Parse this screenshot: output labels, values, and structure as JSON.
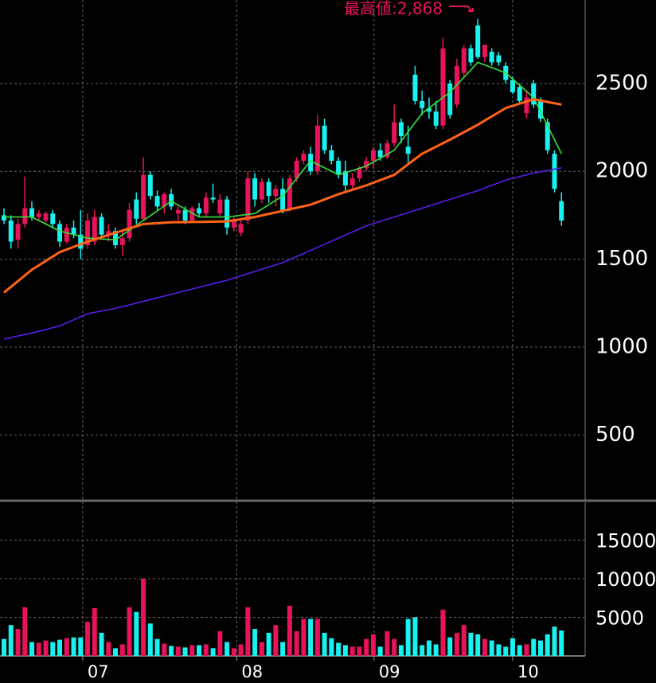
{
  "chart_data": {
    "type": "candlestick",
    "annotation": "最高値:2,868",
    "xlim": [
      -0.57,
      83.4
    ],
    "xticks": [
      {
        "value": 11.3,
        "label": "07"
      },
      {
        "value": 33.4,
        "label": "08"
      },
      {
        "value": 53.1,
        "label": "09"
      },
      {
        "value": 73,
        "label": "10"
      }
    ],
    "ylim": [
      130,
      2975
    ],
    "yticks": [
      500,
      1000,
      1500,
      2000,
      2500
    ],
    "up_color": "#e8135a",
    "down_color": "#19f0f0",
    "candles": {
      "open": [
        1750,
        1720,
        1610,
        1700,
        1790,
        1740,
        1720,
        1760,
        1700,
        1600,
        1680,
        1640,
        1580,
        1600,
        1740,
        1640,
        1660,
        1580,
        1620,
        1840,
        1730,
        1980,
        1860,
        1800,
        1870,
        1760,
        1780,
        1720,
        1790,
        1760,
        1850,
        1760,
        1840,
        1680,
        1650,
        1720,
        1960,
        1840,
        1940,
        1860,
        1900,
        1780,
        1960,
        2060,
        2100,
        2000,
        2260,
        2120,
        2060,
        2000,
        1920,
        1960,
        2020,
        2060,
        2120,
        2080,
        2160,
        2280,
        2140,
        2550,
        2400,
        2360,
        2340,
        2260,
        2500,
        2380,
        2560,
        2700,
        2830,
        2650,
        2680,
        2660,
        2600,
        2520,
        2480,
        2330,
        2500,
        2400,
        2280,
        2100,
        1830
      ],
      "high": [
        1790,
        1750,
        1730,
        1970,
        1830,
        1780,
        1770,
        1780,
        1720,
        1700,
        1720,
        1780,
        1760,
        1780,
        1760,
        1700,
        1680,
        1660,
        1820,
        1880,
        2080,
        2000,
        1890,
        1880,
        1900,
        1800,
        1800,
        1800,
        1820,
        1880,
        1930,
        1870,
        1860,
        1740,
        1720,
        2000,
        1990,
        1960,
        1960,
        1920,
        1960,
        1980,
        2080,
        2120,
        2140,
        2320,
        2300,
        2150,
        2080,
        2060,
        1990,
        2030,
        2080,
        2140,
        2160,
        2180,
        2380,
        2300,
        2260,
        2600,
        2460,
        2420,
        2400,
        2760,
        2520,
        2640,
        2720,
        2720,
        2868,
        2720,
        2700,
        2680,
        2620,
        2540,
        2500,
        2460,
        2520,
        2420,
        2300,
        2120,
        1880
      ],
      "low": [
        1700,
        1560,
        1560,
        1680,
        1720,
        1720,
        1700,
        1680,
        1570,
        1590,
        1620,
        1500,
        1560,
        1580,
        1620,
        1600,
        1560,
        1520,
        1600,
        1700,
        1720,
        1840,
        1780,
        1760,
        1780,
        1720,
        1700,
        1710,
        1740,
        1740,
        1820,
        1740,
        1640,
        1660,
        1630,
        1700,
        1800,
        1820,
        1820,
        1800,
        1760,
        1770,
        1940,
        2040,
        1980,
        1980,
        2100,
        2040,
        1960,
        1880,
        1900,
        1940,
        2000,
        2020,
        2060,
        2070,
        2140,
        2160,
        2040,
        2380,
        2320,
        2300,
        2240,
        2240,
        2300,
        2360,
        2540,
        2600,
        2640,
        2620,
        2600,
        2600,
        2500,
        2440,
        2380,
        2300,
        2360,
        2280,
        2100,
        1880,
        1690
      ],
      "close": [
        1720,
        1600,
        1700,
        1790,
        1740,
        1760,
        1760,
        1700,
        1600,
        1680,
        1640,
        1560,
        1720,
        1740,
        1640,
        1660,
        1580,
        1620,
        1780,
        1730,
        1980,
        1860,
        1800,
        1870,
        1800,
        1780,
        1720,
        1790,
        1760,
        1850,
        1840,
        1840,
        1680,
        1720,
        1700,
        1960,
        1840,
        1940,
        1860,
        1900,
        1780,
        1960,
        2060,
        2100,
        2000,
        2260,
        2120,
        2060,
        1980,
        1920,
        1960,
        2020,
        2060,
        2120,
        2080,
        2160,
        2280,
        2200,
        2100,
        2400,
        2360,
        2340,
        2260,
        2700,
        2320,
        2600,
        2700,
        2620,
        2650,
        2720,
        2620,
        2620,
        2520,
        2450,
        2400,
        2420,
        2380,
        2300,
        2120,
        1900,
        1720
      ]
    },
    "moving_averages": [
      {
        "color": "#38e038",
        "x": [
          0,
          4,
          8,
          12,
          16,
          20,
          24,
          28,
          32,
          36,
          40,
          44,
          48,
          52,
          56,
          60,
          64,
          68,
          72,
          76,
          80
        ],
        "values": [
          1740,
          1740,
          1660,
          1620,
          1610,
          1720,
          1830,
          1740,
          1740,
          1760,
          1860,
          2060,
          1980,
          2030,
          2120,
          2330,
          2450,
          2620,
          2560,
          2420,
          2100
        ]
      },
      {
        "color": "#ff6414",
        "x": [
          0,
          4,
          8,
          12,
          16,
          20,
          24,
          28,
          32,
          36,
          40,
          44,
          48,
          52,
          56,
          60,
          64,
          68,
          72,
          76,
          80
        ],
        "values": [
          1310,
          1440,
          1540,
          1600,
          1650,
          1700,
          1710,
          1712,
          1715,
          1740,
          1775,
          1810,
          1870,
          1920,
          1980,
          2100,
          2180,
          2265,
          2360,
          2410,
          2380
        ]
      },
      {
        "color": "#5a1ee8",
        "x": [
          0,
          4,
          8,
          12,
          16,
          20,
          24,
          28,
          32,
          36,
          40,
          44,
          48,
          52,
          56,
          60,
          64,
          68,
          72,
          76,
          80
        ],
        "values": [
          1045,
          1080,
          1120,
          1190,
          1220,
          1260,
          1300,
          1340,
          1380,
          1430,
          1480,
          1550,
          1620,
          1690,
          1740,
          1790,
          1840,
          1890,
          1950,
          1990,
          2020
        ]
      }
    ],
    "volume": {
      "ylim": [
        0,
        20000
      ],
      "yticks": [
        5000,
        10000,
        15000
      ],
      "values": [
        2200,
        4000,
        3500,
        6300,
        1800,
        1700,
        2000,
        1800,
        2100,
        2300,
        2400,
        2400,
        4400,
        6200,
        3000,
        1800,
        1000,
        1500,
        6300,
        5700,
        10000,
        4200,
        2200,
        1600,
        1300,
        1200,
        1100,
        1400,
        1400,
        1500,
        1000,
        3200,
        1800,
        1000,
        1500,
        6300,
        3500,
        1800,
        3000,
        4000,
        1800,
        6500,
        3200,
        4800,
        4800,
        4800,
        3000,
        2300,
        1700,
        1400,
        1200,
        1200,
        2200,
        2800,
        1200,
        3200,
        2200,
        1400,
        4800,
        5000,
        1400,
        2000,
        1500,
        6000,
        2400,
        3000,
        4000,
        3000,
        2800,
        2200,
        2000,
        1500,
        1200,
        2300,
        1400,
        1500,
        2200,
        2000,
        2800,
        3800,
        3300
      ]
    }
  }
}
